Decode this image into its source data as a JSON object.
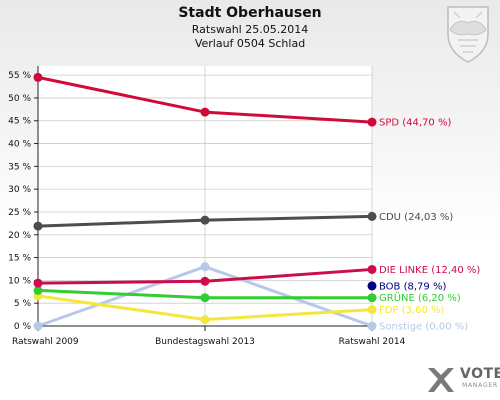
{
  "header": {
    "title": "Stadt Oberhausen",
    "subtitle": "Ratswahl 25.05.2014",
    "subtitle2": "Verlauf 0504 Schlad"
  },
  "logo": {
    "line1": "VOTE",
    "line2": "MANAGER"
  },
  "colors": {
    "background_top": "#e9e9e9",
    "background_bottom": "#ffffff",
    "plot_background": "#ffffff",
    "grid": "#cccccc"
  },
  "chart_data": {
    "type": "line",
    "title": "Stadt Oberhausen",
    "xlabel": "",
    "ylabel": "",
    "x": [
      "Ratswahl 2009",
      "Bundestagswahl 2013",
      "Ratswahl 2014"
    ],
    "ylim": [
      0,
      57
    ],
    "yticks": [
      0,
      5,
      10,
      15,
      20,
      25,
      30,
      35,
      40,
      45,
      50,
      55
    ],
    "ytick_labels": [
      "0 %",
      "5 %",
      "10 %",
      "15 %",
      "20 %",
      "25 %",
      "30 %",
      "35 %",
      "40 %",
      "45 %",
      "50 %",
      "55 %"
    ],
    "grid": true,
    "series": [
      {
        "name": "SPD",
        "values": [
          54.5,
          46.9,
          44.7
        ],
        "color": "#d10a3c",
        "label": "SPD (44,70 %)"
      },
      {
        "name": "CDU",
        "values": [
          21.9,
          23.2,
          24.03
        ],
        "color": "#4d4d4d",
        "label": "CDU (24,03 %)"
      },
      {
        "name": "DIE LINKE",
        "values": [
          9.4,
          9.8,
          12.4
        ],
        "color": "#cc0d4a",
        "label": "DIE LINKE (12,40 %)"
      },
      {
        "name": "BOB",
        "values": [
          null,
          null,
          8.79
        ],
        "color": "#000080",
        "label": "BOB (8,79 %)"
      },
      {
        "name": "GRÜNE",
        "values": [
          7.8,
          6.2,
          6.2
        ],
        "color": "#33cc33",
        "label": "GRÜNE (6,20 %)"
      },
      {
        "name": "FDP",
        "values": [
          6.6,
          1.4,
          3.6
        ],
        "color": "#f5e63d",
        "label": "FDP (3,60 %)"
      },
      {
        "name": "Sonstige",
        "values": [
          0.0,
          13.0,
          0.0
        ],
        "color": "#b8c8e8",
        "label": "Sonstige (0,00 %)"
      }
    ]
  }
}
